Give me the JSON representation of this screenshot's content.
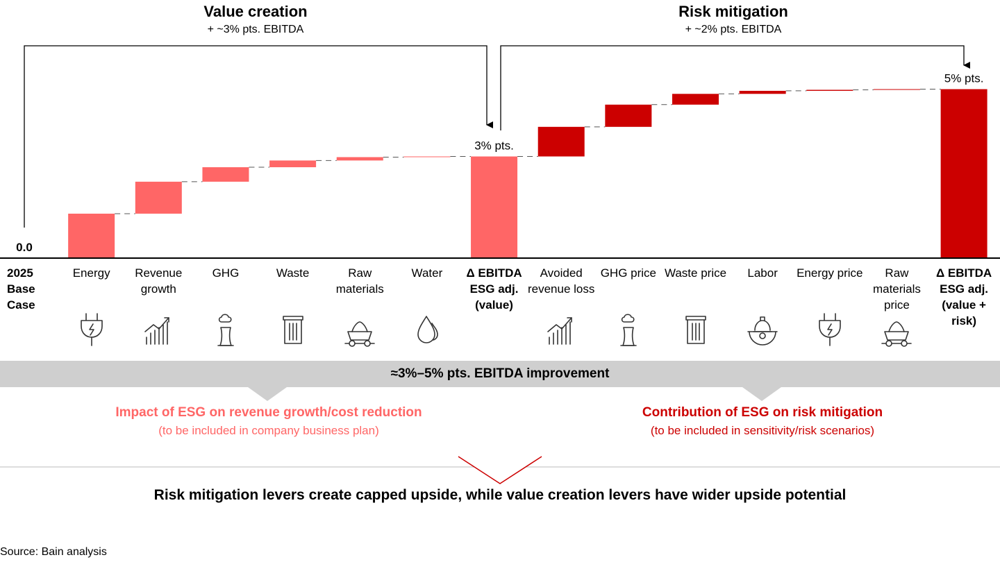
{
  "chart_data": {
    "type": "waterfall",
    "unit": "% pts. EBITDA",
    "groups": [
      {
        "title": "Value creation",
        "subtitle": "+ ~3% pts. EBITDA"
      },
      {
        "title": "Risk mitigation",
        "subtitle": "+ ~2% pts. EBITDA"
      }
    ],
    "categories": [
      {
        "label": "2025 Base Case",
        "kind": "start",
        "value": 0.0,
        "value_label": "0.0",
        "icon": ""
      },
      {
        "label": "Energy",
        "kind": "value",
        "value": 1.3,
        "icon": "plug-icon"
      },
      {
        "label": "Revenue growth",
        "kind": "value",
        "value": 0.95,
        "icon": "growth-chart-icon"
      },
      {
        "label": "GHG",
        "kind": "value",
        "value": 0.43,
        "icon": "factory-chimney-icon"
      },
      {
        "label": "Waste",
        "kind": "value",
        "value": 0.2,
        "icon": "trash-bin-icon"
      },
      {
        "label": "Raw materials",
        "kind": "value",
        "value": 0.1,
        "icon": "mine-cart-icon"
      },
      {
        "label": "Water",
        "kind": "value",
        "value": 0.02,
        "icon": "water-drops-icon"
      },
      {
        "label": "Δ EBITDA ESG adj. (value)",
        "kind": "subtotal",
        "value": 3.0,
        "value_label": "3% pts.",
        "icon": ""
      },
      {
        "label": "Avoided revenue loss",
        "kind": "risk",
        "value": 0.88,
        "icon": "growth-chart-icon"
      },
      {
        "label": "GHG price",
        "kind": "risk",
        "value": 0.66,
        "icon": "factory-chimney-icon"
      },
      {
        "label": "Waste price",
        "kind": "risk",
        "value": 0.32,
        "icon": "trash-bin-icon"
      },
      {
        "label": "Labor",
        "kind": "risk",
        "value": 0.09,
        "icon": "hard-hat-gear-icon"
      },
      {
        "label": "Energy price",
        "kind": "risk",
        "value": 0.03,
        "icon": "plug-icon"
      },
      {
        "label": "Raw materials price",
        "kind": "risk",
        "value": 0.02,
        "icon": "mine-cart-icon"
      },
      {
        "label": "Δ EBITDA ESG adj. (value + risk)",
        "kind": "total",
        "value": 5.0,
        "value_label": "5% pts.",
        "icon": ""
      }
    ],
    "ylim": [
      0,
      5
    ],
    "grid": false,
    "colors": {
      "value": "#ff6666",
      "risk": "#cc0000",
      "connector": "#555555"
    }
  },
  "band": {
    "label": "≈3%–5% pts. EBITDA improvement"
  },
  "notes": {
    "left": {
      "title": "Impact of ESG on revenue growth/cost reduction",
      "sub": "(to be included in company business plan)",
      "color": "#ff6666"
    },
    "right": {
      "title": "Contribution of ESG on risk mitigation",
      "sub": "(to be included in sensitivity/risk scenarios)",
      "color": "#cc0000"
    }
  },
  "conclusion": "Risk mitigation levers create capped upside, while value creation levers have wider upside potential",
  "source": "Source: Bain analysis"
}
